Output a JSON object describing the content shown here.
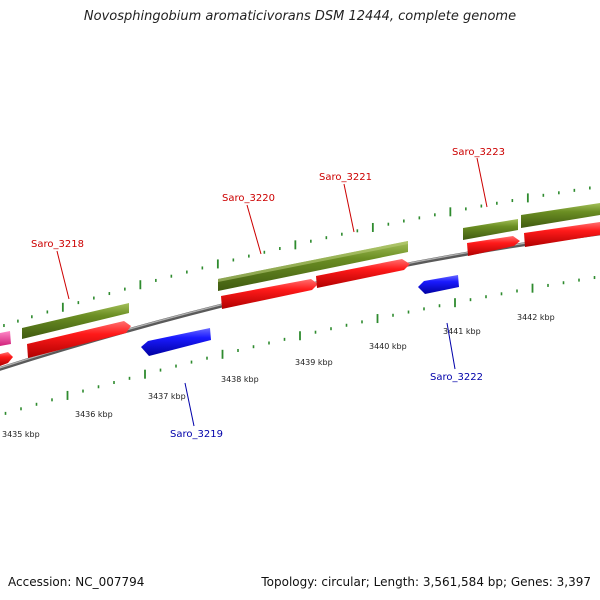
{
  "title": "Novosphingobium aromaticivorans DSM 12444, complete genome",
  "accession_label": "Accession: NC_007794",
  "topology_label": "Topology: circular; Length: 3,561,584 bp; Genes: 3,397",
  "colors": {
    "backbone": "#8a8a8a",
    "tick": "#2e8b2e",
    "forward_gene": "#ff1a1a",
    "forward_cds": "#6b8e23",
    "reverse_gene": "#1a1aff",
    "partial_gene": "#ff3fa0",
    "forward_label": "#cc0000",
    "reverse_label": "#0000aa"
  },
  "axis_labels": [
    "3435 kbp",
    "3436 kbp",
    "3437 kbp",
    "3438 kbp",
    "3439 kbp",
    "3440 kbp",
    "3441 kbp",
    "3442 kbp"
  ],
  "gene_labels": [
    {
      "name": "Saro_3218",
      "strand": "forward"
    },
    {
      "name": "Saro_3220",
      "strand": "forward"
    },
    {
      "name": "Saro_3221",
      "strand": "forward"
    },
    {
      "name": "Saro_3223",
      "strand": "forward"
    },
    {
      "name": "Saro_3219",
      "strand": "reverse"
    },
    {
      "name": "Saro_3222",
      "strand": "reverse"
    }
  ]
}
